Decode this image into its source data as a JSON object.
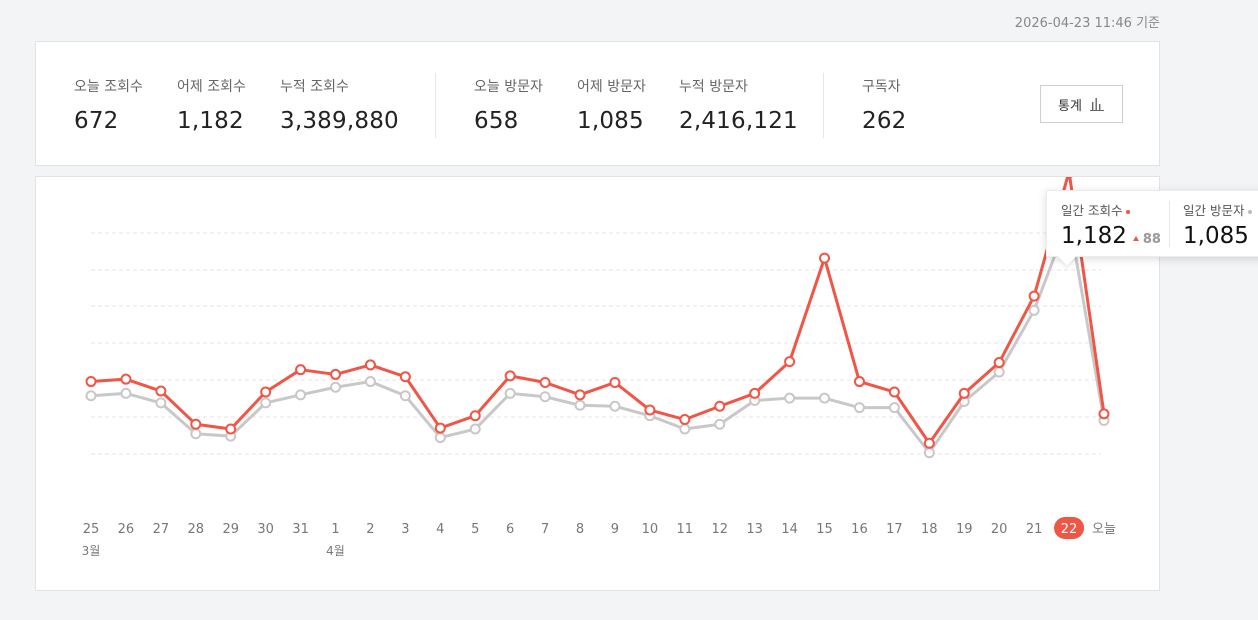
{
  "timestamp": "2026-04-23 11:46 기준",
  "stats": [
    {
      "label": "오늘 조회수",
      "value": "672"
    },
    {
      "label": "어제 조회수",
      "value": "1,182"
    },
    {
      "label": "누적 조회수",
      "value": "3,389,880"
    },
    {
      "label": "오늘 방문자",
      "value": "658"
    },
    {
      "label": "어제 방문자",
      "value": "1,085"
    },
    {
      "label": "누적 방문자",
      "value": "2,416,121"
    },
    {
      "label": "구독자",
      "value": "262"
    }
  ],
  "stats_button": {
    "label": "통계",
    "icon": "bar-chart-icon"
  },
  "tooltip": {
    "views": {
      "label": "일간 조회수",
      "value": "1,182",
      "delta": "88"
    },
    "visitors": {
      "label": "일간 방문자",
      "value": "1,085"
    }
  },
  "colors": {
    "views": "#f05545",
    "visitors": "#c8c8c8",
    "accent": "#f05545"
  },
  "chart_data": {
    "type": "line",
    "x": [
      "25",
      "26",
      "27",
      "28",
      "29",
      "30",
      "31",
      "1",
      "2",
      "3",
      "4",
      "5",
      "6",
      "7",
      "8",
      "9",
      "10",
      "11",
      "12",
      "13",
      "14",
      "15",
      "16",
      "17",
      "18",
      "19",
      "20",
      "21",
      "22",
      "오늘"
    ],
    "month_labels": [
      {
        "index": 0,
        "label": "3월"
      },
      {
        "index": 7,
        "label": "4월"
      }
    ],
    "highlight_index": 28,
    "grid": true,
    "series": [
      {
        "key": "views",
        "values": [
          740,
          745,
          720,
          650,
          640,
          718,
          765,
          755,
          775,
          750,
          642,
          668,
          752,
          738,
          712,
          738,
          680,
          660,
          688,
          715,
          782,
          1000,
          740,
          718,
          610,
          715,
          780,
          920,
          1182,
          672
        ]
      },
      {
        "key": "visitors",
        "values": [
          710,
          715,
          695,
          630,
          625,
          695,
          712,
          728,
          740,
          710,
          622,
          640,
          715,
          708,
          690,
          688,
          668,
          640,
          650,
          700,
          705,
          705,
          685,
          685,
          590,
          698,
          760,
          890,
          1085,
          658
        ]
      }
    ]
  }
}
